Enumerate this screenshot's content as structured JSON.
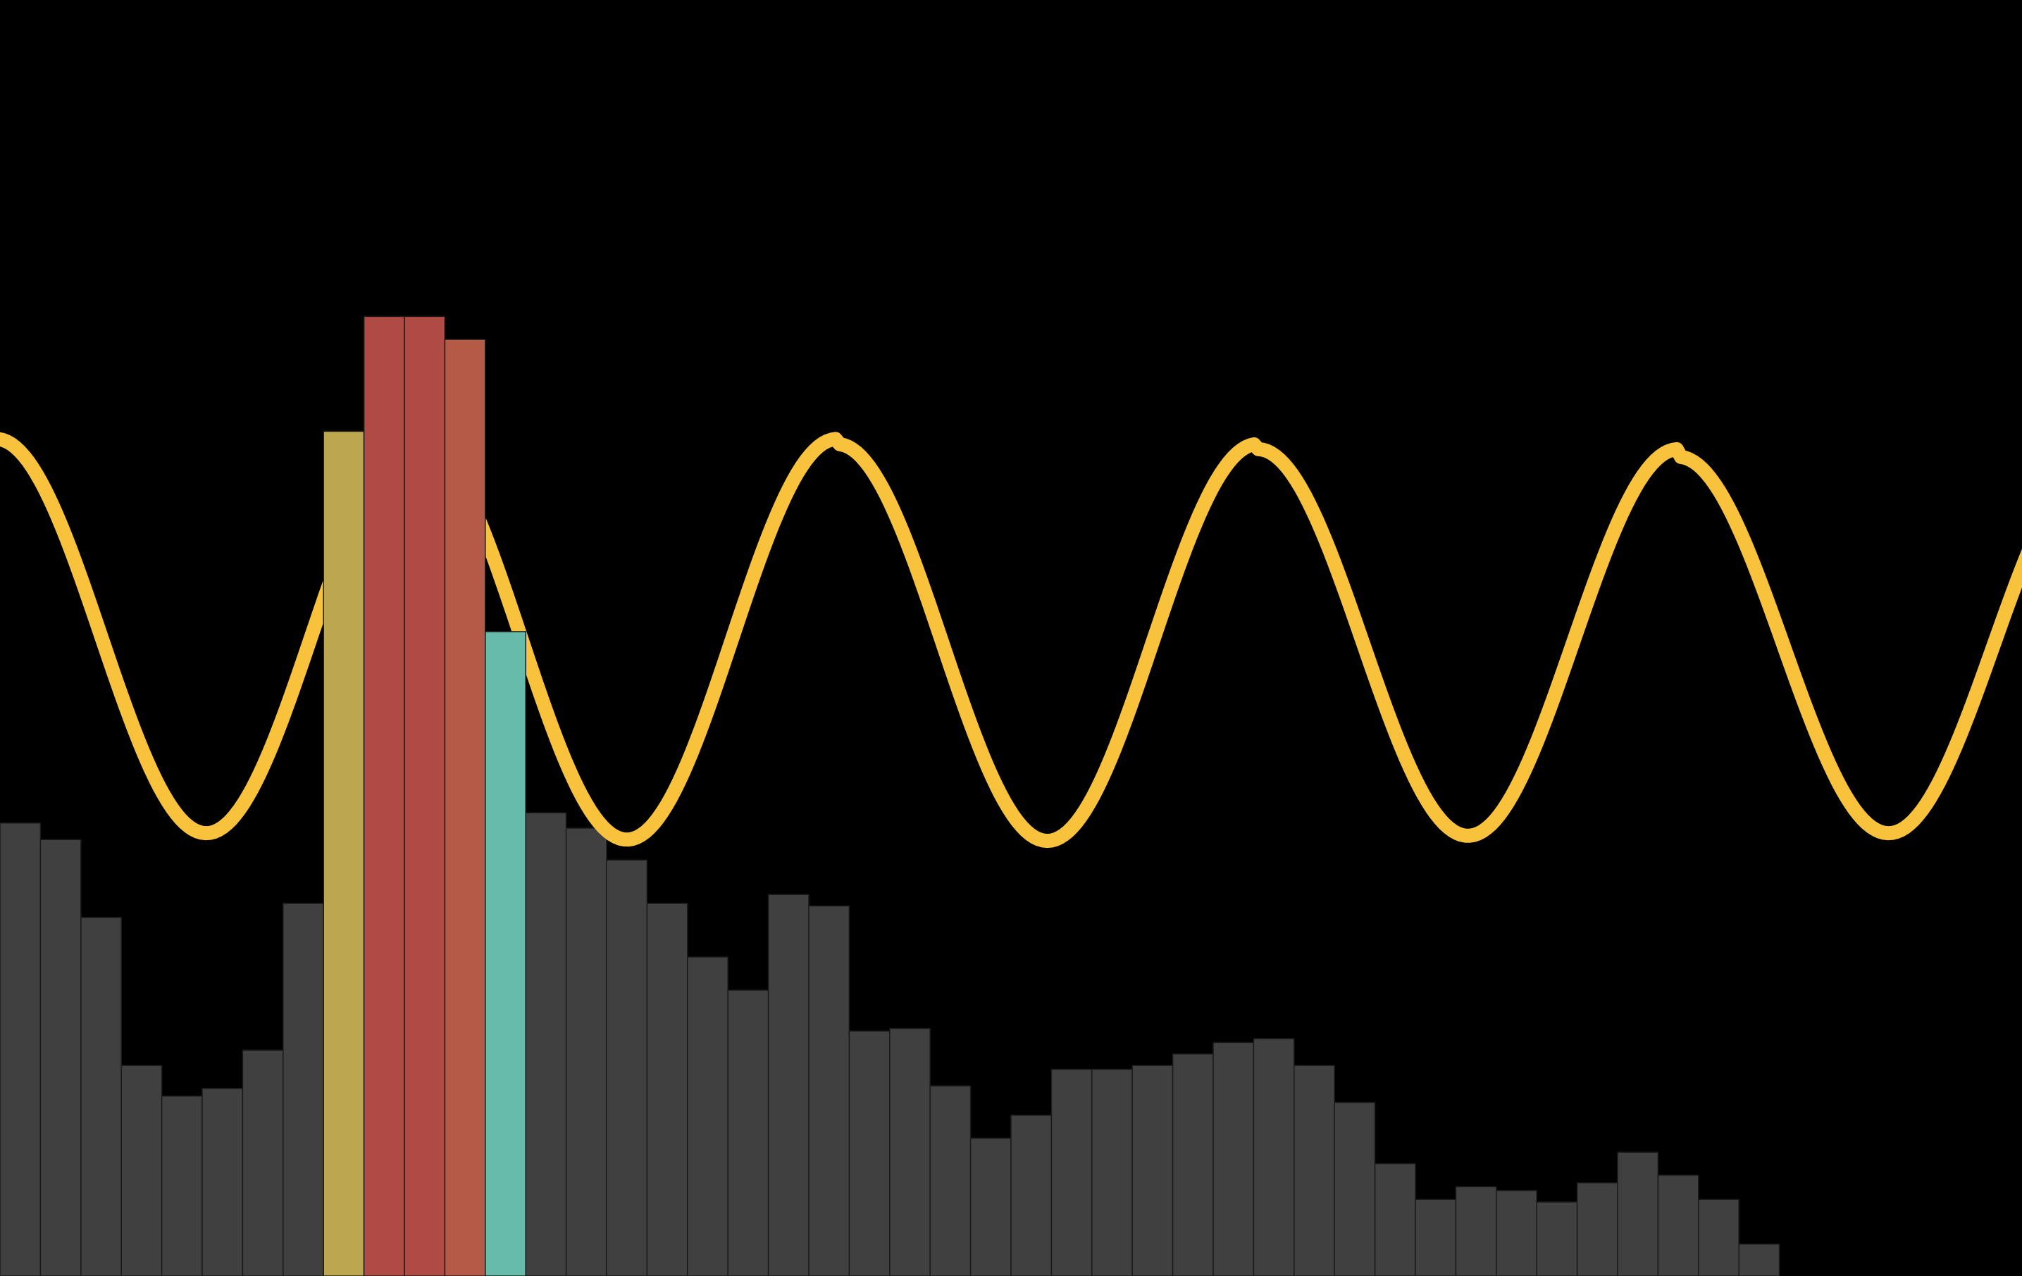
{
  "chart_data": {
    "type": "bar",
    "title": "",
    "xlabel": "",
    "ylabel": "",
    "grid": false,
    "legend": "none",
    "background_color": "#000000",
    "bar_default_color": "#404040",
    "bar_edge_color": "#1a1a1a",
    "ylim": [
      0,
      1
    ],
    "bars": {
      "values": [
        0.355,
        0.342,
        0.281,
        0.165,
        0.141,
        0.147,
        0.177,
        0.292,
        0.662,
        0.752,
        0.752,
        0.734,
        0.505,
        0.363,
        0.351,
        0.326,
        0.292,
        0.25,
        0.224,
        0.299,
        0.29,
        0.192,
        0.194,
        0.149,
        0.108,
        0.126,
        0.162,
        0.162,
        0.165,
        0.174,
        0.183,
        0.186,
        0.165,
        0.136,
        0.088,
        0.06,
        0.07,
        0.067,
        0.058,
        0.073,
        0.097,
        0.079,
        0.06,
        0.025
      ],
      "highlights": [
        {
          "index": 8,
          "color": "#bca64f"
        },
        {
          "index": 9,
          "color": "#b04a44"
        },
        {
          "index": 10,
          "color": "#b04a44"
        },
        {
          "index": 11,
          "color": "#b45a46"
        },
        {
          "index": 12,
          "color": "#67bbaa"
        }
      ]
    },
    "series": [
      {
        "type": "line",
        "color": "#f8c23c",
        "values": [
          0.64,
          0.6075,
          0.5175,
          0.4,
          0.3875,
          0.39,
          0.4725,
          0.5925,
          0.6525,
          0.64,
          0.5175,
          0.4,
          0.3875,
          0.39,
          0.4725,
          0.5925,
          0.6525,
          0.64,
          0.5175,
          0.4,
          0.3875,
          0.39,
          0.4725,
          0.5925,
          0.6525,
          0.64,
          0.5175,
          0.4,
          0.3875,
          0.39,
          0.4725,
          0.5925,
          0.6525,
          0.64,
          0.5175,
          0.4,
          0.3875,
          0.39,
          0.4725,
          0.5925,
          0.6525,
          0.64,
          0.5175,
          0.4
        ],
        "peaks": [
          0.656,
          0.656,
          0.652,
          0.648,
          0.642
        ],
        "troughs": [
          0.347,
          0.342,
          0.341,
          0.345,
          0.347
        ],
        "period_bars": 10.4,
        "phase_bars": -0.1
      }
    ]
  }
}
